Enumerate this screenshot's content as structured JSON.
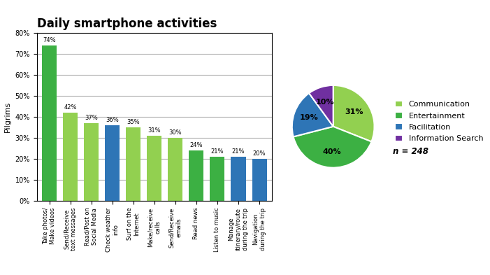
{
  "chart_data": [
    {
      "type": "bar",
      "title": "Daily smartphone activities",
      "ylabel": "Pilgrims",
      "categories": [
        "Take photos/\nMake videos",
        "Send/Receive\ntext messages",
        "Read/Post on\nSocial Media",
        "Check weather\ninfo",
        "Surf on the\nInternet",
        "Make/receive\ncalls",
        "Send/Receive\nemails",
        "Read news",
        "Listen to music",
        "Manage\nitinerary/route\nduring the trip",
        "Navigation\nduring the trip"
      ],
      "values": [
        74,
        42,
        37,
        36,
        35,
        31,
        30,
        24,
        21,
        21,
        20
      ],
      "value_labels": [
        "74%",
        "42%",
        "37%",
        "36%",
        "35%",
        "31%",
        "30%",
        "24%",
        "21%",
        "21%",
        "20%"
      ],
      "data_labels": true,
      "colors": [
        "#3cb043",
        "#92d050",
        "#92d050",
        "#2e75b6",
        "#92d050",
        "#92d050",
        "#92d050",
        "#3cb043",
        "#3cb043",
        "#2e75b6",
        "#2e75b6"
      ],
      "ylim": [
        0,
        80
      ],
      "yticks": [
        {
          "value": 0,
          "label": "0%"
        },
        {
          "value": 10,
          "label": "10%"
        },
        {
          "value": 20,
          "label": "20%"
        },
        {
          "value": 30,
          "label": "30%"
        },
        {
          "value": 40,
          "label": "40%"
        },
        {
          "value": 50,
          "label": "50%"
        },
        {
          "value": 60,
          "label": "60%"
        },
        {
          "value": 70,
          "label": "70%"
        },
        {
          "value": 80,
          "label": "80%"
        }
      ],
      "grid": true
    },
    {
      "type": "pie",
      "categories": [
        "Communication",
        "Entertainment",
        "Facilitation",
        "Information Search"
      ],
      "values": [
        31,
        40,
        19,
        10
      ],
      "value_labels": [
        "31%",
        "40%",
        "19%",
        "10%"
      ],
      "data_labels": true,
      "colors": [
        "#92d050",
        "#3cb043",
        "#2e75b6",
        "#7030a0"
      ],
      "legend": "center left",
      "annotations": [
        "n = 248"
      ]
    }
  ]
}
